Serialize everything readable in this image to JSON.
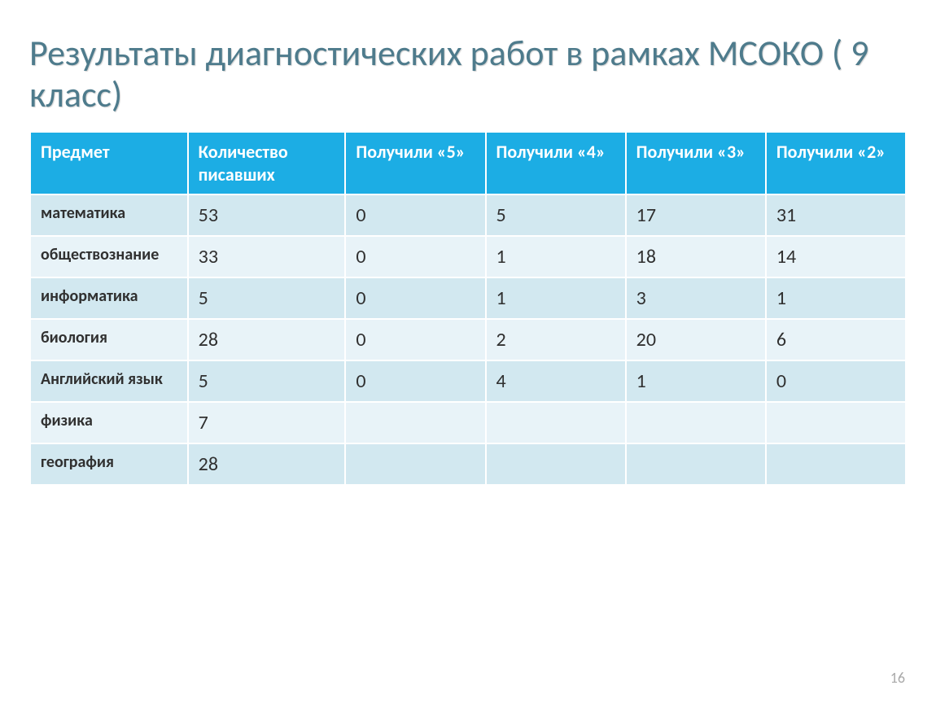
{
  "title": "Результаты диагностических работ в рамках МСОКО ( 9 класс)",
  "table": {
    "type": "table",
    "header_bg": "#1cade4",
    "header_fg": "#ffffff",
    "row_light_bg": "#d2e8f0",
    "row_dark_bg": "#e8f3f8",
    "border_color": "#ffffff",
    "columns": [
      "Предмет",
      "Количество писавших",
      "Получили «5»",
      "Получили «4»",
      "Получили «3»",
      "Получили «2»"
    ],
    "rows": [
      {
        "subject": "математика",
        "values": [
          "53",
          "0",
          "5",
          "17",
          "31"
        ]
      },
      {
        "subject": "обществознание",
        "values": [
          "33",
          "0",
          "1",
          "18",
          "14"
        ]
      },
      {
        "subject": "информатика",
        "values": [
          "5",
          "0",
          "1",
          "3",
          "1"
        ]
      },
      {
        "subject": "биология",
        "values": [
          "28",
          "0",
          "2",
          "20",
          "6"
        ]
      },
      {
        "subject": "Английский язык",
        "values": [
          "5",
          "0",
          "4",
          "1",
          "0"
        ]
      },
      {
        "subject": "физика",
        "values": [
          "7",
          "",
          "",
          "",
          ""
        ]
      },
      {
        "subject": "география",
        "values": [
          "28",
          "",
          "",
          "",
          ""
        ]
      }
    ]
  },
  "page_number": "16"
}
